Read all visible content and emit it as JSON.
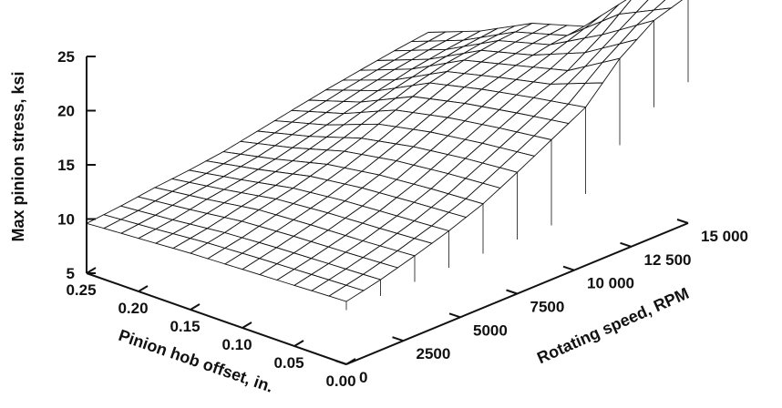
{
  "chart_data": {
    "type": "surface",
    "title": "",
    "zlabel": "Max pinion stress, ksi",
    "xlabel": "Pinion hob offset, in.",
    "ylabel": "Rotating speed, RPM",
    "z_ticks": [
      "5",
      "10",
      "15",
      "20",
      "25"
    ],
    "x_ticks": [
      "0.25",
      "0.20",
      "0.15",
      "0.10",
      "0.05",
      "0.00"
    ],
    "y_ticks": [
      "0",
      "2500",
      "5000",
      "7500",
      "10 000",
      "12 500",
      "15 000"
    ],
    "zlim": [
      5,
      25
    ],
    "xlim": [
      0.25,
      0.0
    ],
    "ylim": [
      0,
      15000
    ],
    "hob_offsets": [
      0.25,
      0.2,
      0.15,
      0.1,
      0.05,
      0.0
    ],
    "speeds": [
      0,
      1500,
      3000,
      4500,
      6000,
      7500,
      9000,
      10500,
      12000,
      13500,
      15000
    ],
    "stress": [
      [
        9.6,
        9.9,
        10.3,
        10.6,
        11.0,
        11.6,
        12.2,
        12.8,
        13.3,
        13.8,
        14.2
      ],
      [
        9.9,
        10.3,
        10.9,
        11.4,
        12.0,
        12.8,
        13.6,
        14.4,
        15.1,
        15.6,
        16.0
      ],
      [
        10.2,
        10.8,
        11.6,
        12.3,
        13.2,
        14.3,
        15.6,
        16.8,
        17.6,
        18.1,
        18.4
      ],
      [
        10.4,
        11.1,
        11.9,
        12.8,
        13.9,
        15.2,
        16.6,
        17.9,
        18.8,
        19.4,
        19.8
      ],
      [
        10.6,
        11.3,
        12.1,
        13.1,
        14.3,
        15.8,
        17.3,
        18.8,
        20.0,
        22.0,
        24.5
      ],
      [
        10.8,
        11.5,
        12.4,
        13.4,
        14.6,
        16.2,
        17.9,
        19.6,
        22.8,
        25.0,
        26.0
      ]
    ]
  }
}
